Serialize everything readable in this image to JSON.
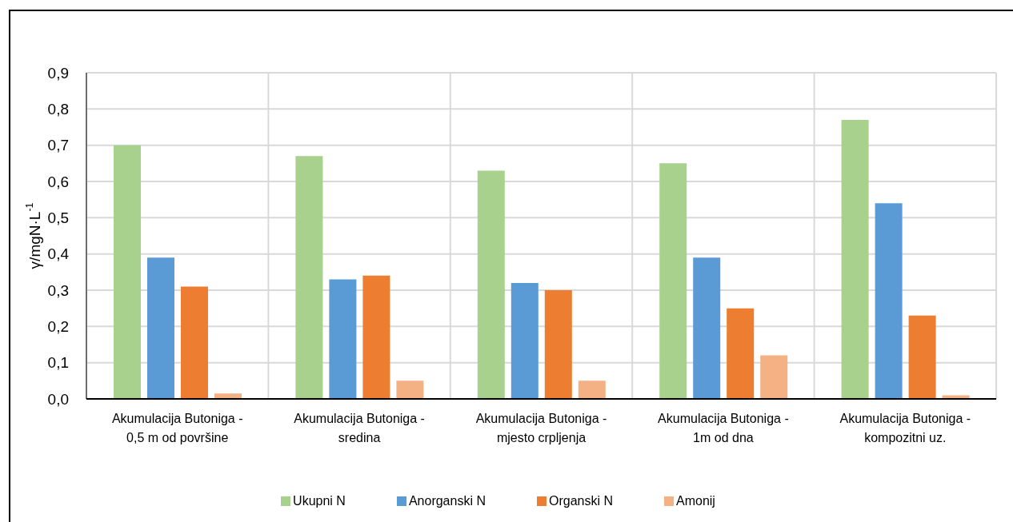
{
  "chart_data": {
    "type": "bar",
    "ylabel": "γ/mgN·L$^{-1}$",
    "categories": [
      "Akumulacija Butoniga - 0,5 m od površine",
      "Akumulacija Butoniga - sredina",
      "Akumulacija Butoniga - mjesto crpljenja",
      "Akumulacija Butoniga - 1m od dna",
      "Akumulacija Butoniga - kompozitni uz."
    ],
    "series": [
      {
        "name": "Ukupni N",
        "color": "#a9d18e",
        "values": [
          0.7,
          0.67,
          0.63,
          0.65,
          0.77
        ]
      },
      {
        "name": "Anorganski N",
        "color": "#5b9bd5",
        "values": [
          0.39,
          0.33,
          0.32,
          0.39,
          0.54
        ]
      },
      {
        "name": "Organski N",
        "color": "#ed7d31",
        "values": [
          0.31,
          0.34,
          0.3,
          0.25,
          0.23
        ]
      },
      {
        "name": "Amonij",
        "color": "#f4b183",
        "values": [
          0.015,
          0.05,
          0.05,
          0.12,
          0.01
        ]
      }
    ],
    "ylim": [
      0,
      0.9
    ],
    "yticks": [
      {
        "value": 0,
        "label": "0,0"
      },
      {
        "value": 0.1,
        "label": "0,1"
      },
      {
        "value": 0.2,
        "label": "0,2"
      },
      {
        "value": 0.3,
        "label": "0,3"
      },
      {
        "value": 0.4,
        "label": "0,4"
      },
      {
        "value": 0.5,
        "label": "0,5"
      },
      {
        "value": 0.6,
        "label": "0,6"
      },
      {
        "value": 0.7,
        "label": "0,7"
      },
      {
        "value": 0.8,
        "label": "0,8"
      },
      {
        "value": 0.9,
        "label": "0,9"
      }
    ],
    "grid": true,
    "legend": "bottom"
  }
}
